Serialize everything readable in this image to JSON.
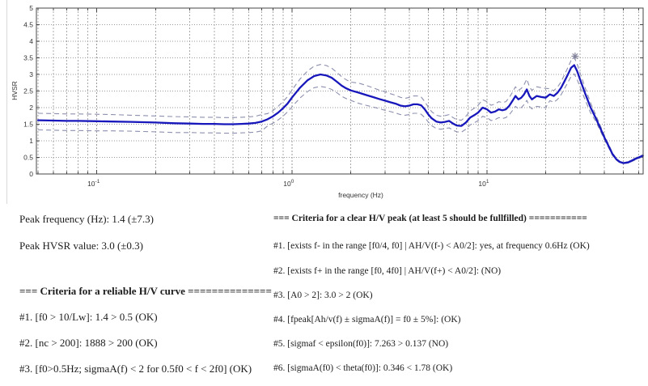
{
  "chart_data": {
    "type": "line",
    "title": "",
    "xlabel": "frequency (Hz)",
    "ylabel": "HVSR",
    "x_scale": "log",
    "xlim": [
      0.049,
      63.2
    ],
    "ylim": [
      0,
      5
    ],
    "yticks": [
      0,
      0.5,
      1,
      1.5,
      2,
      2.5,
      3,
      3.5,
      4,
      4.5,
      5
    ],
    "ytick_labels": [
      "0",
      "0.5",
      "1",
      "1.5",
      "2",
      "2.5",
      "3",
      "3.5",
      "4",
      "4.5",
      "5"
    ],
    "xtick_decades": [
      -1,
      0,
      1
    ],
    "grid": true,
    "legend": "none",
    "colors": {
      "mean": "#1717bb",
      "bounds": "#8d90ae",
      "grid_h": "#9a9a9a",
      "grid_v": "#a8a8a8",
      "axis": "#444444",
      "star": "#83839b",
      "tick_text": "#333333"
    },
    "peak_marker": {
      "f": 28.3,
      "value": 3.55,
      "marker": "asterisk"
    },
    "frequencies": [
      0.05,
      0.06,
      0.07,
      0.08,
      0.1,
      0.12,
      0.15,
      0.2,
      0.25,
      0.3,
      0.35,
      0.4,
      0.45,
      0.5,
      0.55,
      0.6,
      0.65,
      0.7,
      0.75,
      0.8,
      0.85,
      0.9,
      0.95,
      1.0,
      1.1,
      1.2,
      1.3,
      1.4,
      1.5,
      1.6,
      1.7,
      1.8,
      1.9,
      2.0,
      2.2,
      2.4,
      2.6,
      2.8,
      3.0,
      3.2,
      3.4,
      3.6,
      3.8,
      4.0,
      4.2,
      4.4,
      4.6,
      4.8,
      5.0,
      5.2,
      5.5,
      5.8,
      6.1,
      6.4,
      6.7,
      7.0,
      7.4,
      7.8,
      8.2,
      8.6,
      9.0,
      9.5,
      10.0,
      10.5,
      11.0,
      11.5,
      12.0,
      12.5,
      13.0,
      13.5,
      14.0,
      14.5,
      15.0,
      15.5,
      16.0,
      16.5,
      17.0,
      17.5,
      18.0,
      19.0,
      20.0,
      21.0,
      22.0,
      23.0,
      24.0,
      25.0,
      26.0,
      27.0,
      28.0,
      29.0,
      30.0,
      32.0,
      34.0,
      36.0,
      38.0,
      40.0,
      42.0,
      44.0,
      46.0,
      48.0,
      50.0,
      53.0,
      56.0,
      60.0,
      63.0
    ],
    "series": [
      {
        "name": "HVSR mean",
        "values": [
          1.62,
          1.61,
          1.6,
          1.6,
          1.59,
          1.58,
          1.57,
          1.55,
          1.53,
          1.52,
          1.51,
          1.51,
          1.5,
          1.5,
          1.51,
          1.52,
          1.54,
          1.58,
          1.65,
          1.74,
          1.85,
          1.98,
          2.12,
          2.3,
          2.6,
          2.82,
          2.95,
          3.0,
          2.97,
          2.9,
          2.78,
          2.66,
          2.58,
          2.52,
          2.45,
          2.38,
          2.32,
          2.26,
          2.21,
          2.16,
          2.12,
          2.06,
          2.04,
          2.06,
          2.1,
          2.1,
          2.07,
          1.95,
          1.8,
          1.68,
          1.58,
          1.55,
          1.57,
          1.6,
          1.52,
          1.46,
          1.45,
          1.55,
          1.7,
          1.77,
          1.85,
          2.0,
          1.95,
          1.85,
          1.88,
          1.95,
          1.92,
          1.95,
          2.05,
          2.2,
          2.35,
          2.25,
          2.3,
          2.4,
          2.55,
          2.35,
          2.25,
          2.3,
          2.35,
          2.32,
          2.3,
          2.4,
          2.35,
          2.45,
          2.6,
          2.8,
          3.0,
          3.2,
          3.28,
          3.1,
          2.85,
          2.4,
          2.0,
          1.7,
          1.4,
          1.1,
          0.85,
          0.6,
          0.45,
          0.36,
          0.33,
          0.35,
          0.42,
          0.5,
          0.55
        ]
      },
      {
        "name": "upper bound (mean + sigma)",
        "values": [
          1.83,
          1.82,
          1.81,
          1.81,
          1.8,
          1.79,
          1.77,
          1.75,
          1.73,
          1.72,
          1.71,
          1.71,
          1.7,
          1.7,
          1.71,
          1.72,
          1.74,
          1.79,
          1.82,
          1.91,
          2.04,
          2.18,
          2.33,
          2.53,
          2.86,
          3.1,
          3.25,
          3.3,
          3.27,
          3.19,
          3.06,
          2.93,
          2.84,
          2.77,
          2.74,
          2.67,
          2.6,
          2.53,
          2.48,
          2.42,
          2.37,
          2.31,
          2.28,
          2.31,
          2.35,
          2.35,
          2.32,
          2.18,
          2.02,
          1.88,
          1.77,
          1.74,
          1.76,
          1.79,
          1.7,
          1.64,
          1.62,
          1.74,
          1.9,
          1.98,
          2.07,
          2.24,
          2.18,
          2.07,
          2.11,
          2.18,
          2.15,
          2.18,
          2.3,
          2.46,
          2.63,
          2.52,
          2.58,
          2.69,
          2.86,
          2.63,
          2.52,
          2.58,
          2.63,
          2.6,
          2.58,
          2.57,
          2.51,
          2.62,
          2.78,
          3.0,
          3.21,
          3.42,
          3.51,
          3.32,
          3.05,
          2.57,
          2.14,
          1.8,
          1.48,
          1.17,
          0.9,
          0.64,
          0.48,
          0.38,
          0.35,
          0.37,
          0.45,
          0.53,
          0.58
        ]
      },
      {
        "name": "lower bound (mean - sigma)",
        "values": [
          1.33,
          1.32,
          1.31,
          1.31,
          1.3,
          1.3,
          1.29,
          1.27,
          1.25,
          1.25,
          1.24,
          1.24,
          1.23,
          1.23,
          1.24,
          1.25,
          1.26,
          1.3,
          1.45,
          1.53,
          1.63,
          1.74,
          1.87,
          2.02,
          2.29,
          2.48,
          2.6,
          2.64,
          2.61,
          2.55,
          2.45,
          2.34,
          2.27,
          2.22,
          2.13,
          2.07,
          2.02,
          1.97,
          1.92,
          1.88,
          1.84,
          1.79,
          1.77,
          1.79,
          1.83,
          1.83,
          1.8,
          1.7,
          1.57,
          1.46,
          1.37,
          1.35,
          1.37,
          1.39,
          1.32,
          1.27,
          1.26,
          1.35,
          1.48,
          1.54,
          1.61,
          1.74,
          1.7,
          1.61,
          1.64,
          1.7,
          1.67,
          1.7,
          1.78,
          1.91,
          2.04,
          1.96,
          2.0,
          2.09,
          2.22,
          2.04,
          1.96,
          2.0,
          2.04,
          2.02,
          2.0,
          2.21,
          2.16,
          2.25,
          2.39,
          2.58,
          2.76,
          2.94,
          3.02,
          2.85,
          2.62,
          2.21,
          1.84,
          1.6,
          1.32,
          1.03,
          0.8,
          0.56,
          0.42,
          0.34,
          0.31,
          0.33,
          0.39,
          0.47,
          0.52
        ]
      }
    ]
  },
  "report": {
    "peak_frequency_line": "Peak frequency (Hz): 1.4 (±7.3)",
    "peak_value_line": "Peak HVSR value: 3.0 (±0.3)",
    "reliable_header": "=== Criteria for a reliable H/V curve ==============",
    "reliable_items": [
      "#1. [f0 > 10/Lw]: 1.4 > 0.5 (OK)",
      "#2. [nc > 200]: 1888 > 200 (OK)",
      "#3. [f0>0.5Hz; sigmaA(f) < 2 for 0.5f0 < f < 2f0] (OK)"
    ],
    "clear_peak_header": "=== Criteria for a clear H/V peak (at least 5 should be fullfilled) ===========",
    "clear_peak_items": [
      "#1. [exists f- in the range [f0/4, f0] | AH/V(f-) < A0/2]: yes, at frequency 0.6Hz (OK)",
      "#2. [exists f+ in the range [f0, 4f0] | AH/V(f+) < A0/2]: (NO)",
      "#3. [A0 > 2]: 3.0 > 2 (OK)",
      "#4. [fpeak[Ah/v(f) ± sigmaA(f)] = f0 ± 5%]: (OK)",
      "#5. [sigmaf < epsilon(f0)]: 7.263 > 0.137 (NO)",
      "#6. [sigmaA(f0) < theta(f0)]: 0.346 < 1.78 (OK)"
    ]
  }
}
